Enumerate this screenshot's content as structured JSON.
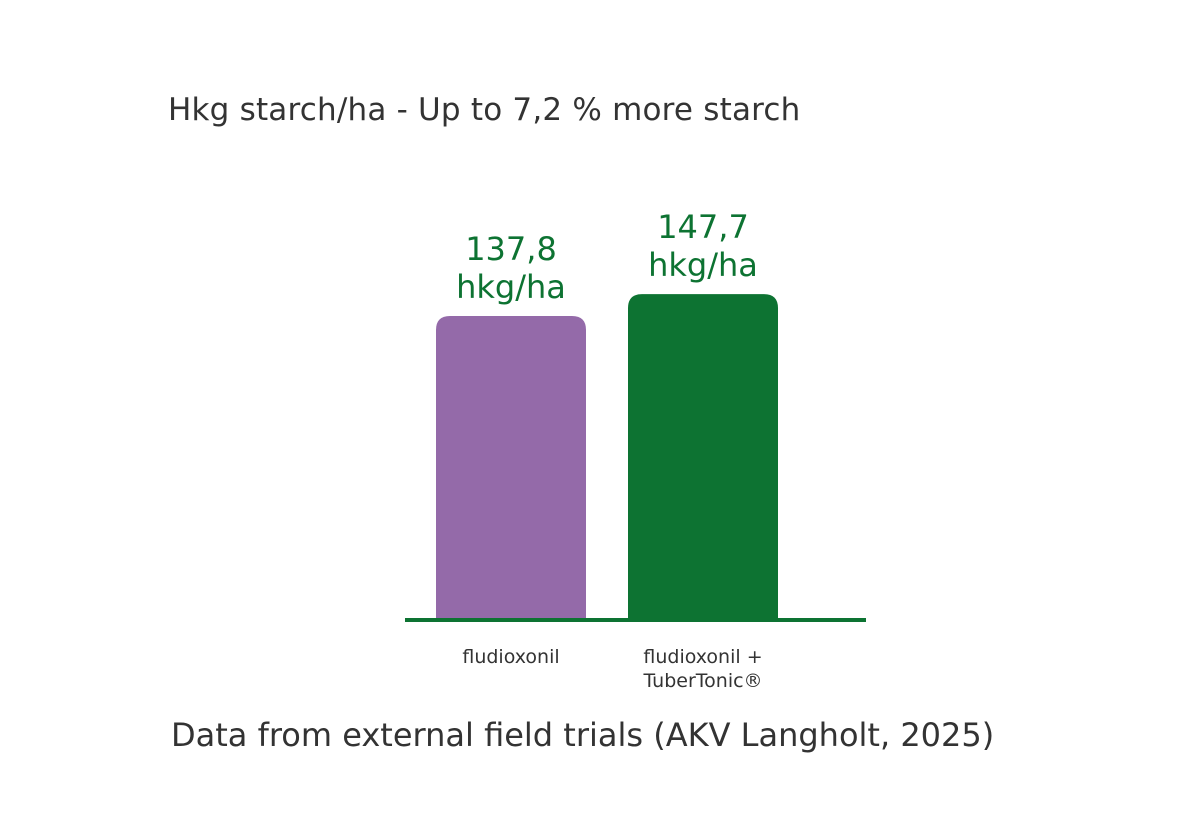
{
  "title": "Hkg starch/ha - Up to 7,2 % more starch",
  "footnote": "Data from external field trials (AKV Langholt,  2025)",
  "colors": {
    "bar_1": "#946aa9",
    "bar_2": "#0d7332",
    "axis": "#0d7332",
    "value_label": "#0d7332",
    "text": "#333333"
  },
  "chart_data": {
    "type": "bar",
    "categories": [
      [
        "fludioxonil"
      ],
      [
        "fludioxonil +",
        "TuberTonic®"
      ]
    ],
    "values": [
      137.8,
      147.7
    ],
    "value_labels": [
      [
        "137,8",
        "hkg/ha"
      ],
      [
        "147,7",
        "hkg/ha"
      ]
    ],
    "title": "Hkg starch/ha - Up to 7,2 % more starch",
    "xlabel": "",
    "ylabel": "",
    "grid": false,
    "legend": "none"
  }
}
